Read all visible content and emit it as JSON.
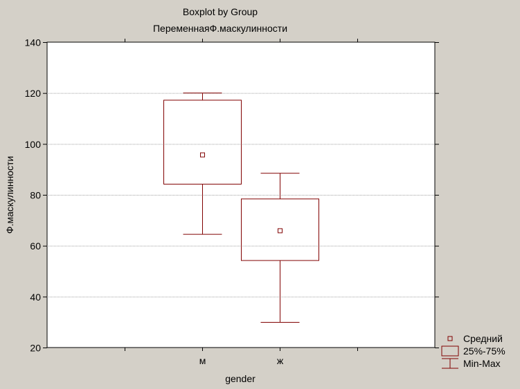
{
  "chart_data": {
    "type": "boxplot",
    "title": "Boxplot by Group",
    "subtitle": "ПеременнаяФ.маскулинности",
    "xlabel": "gender",
    "ylabel": "Ф.маскулинности",
    "ylim": [
      20,
      140
    ],
    "yticks": [
      20,
      40,
      60,
      80,
      100,
      120,
      140
    ],
    "grid": true,
    "legend_position": "bottom-right",
    "colors": {
      "box": "#800000",
      "grid": "#a0a0a0",
      "background": "#d4d0c8",
      "plot_area": "#ffffff"
    },
    "categories": [
      "м",
      "ж"
    ],
    "groups": [
      {
        "label": "м",
        "mean": 95.7,
        "q1": 84.2,
        "q3": 117.2,
        "min": 64.5,
        "max": 120.0
      },
      {
        "label": "ж",
        "mean": 65.9,
        "q1": 54.2,
        "q3": 78.4,
        "min": 29.9,
        "max": 88.5
      }
    ],
    "legend": [
      {
        "marker": "mean",
        "label": "Средний"
      },
      {
        "marker": "box",
        "label": "25%-75%"
      },
      {
        "marker": "whisker",
        "label": "Min-Max"
      }
    ]
  }
}
